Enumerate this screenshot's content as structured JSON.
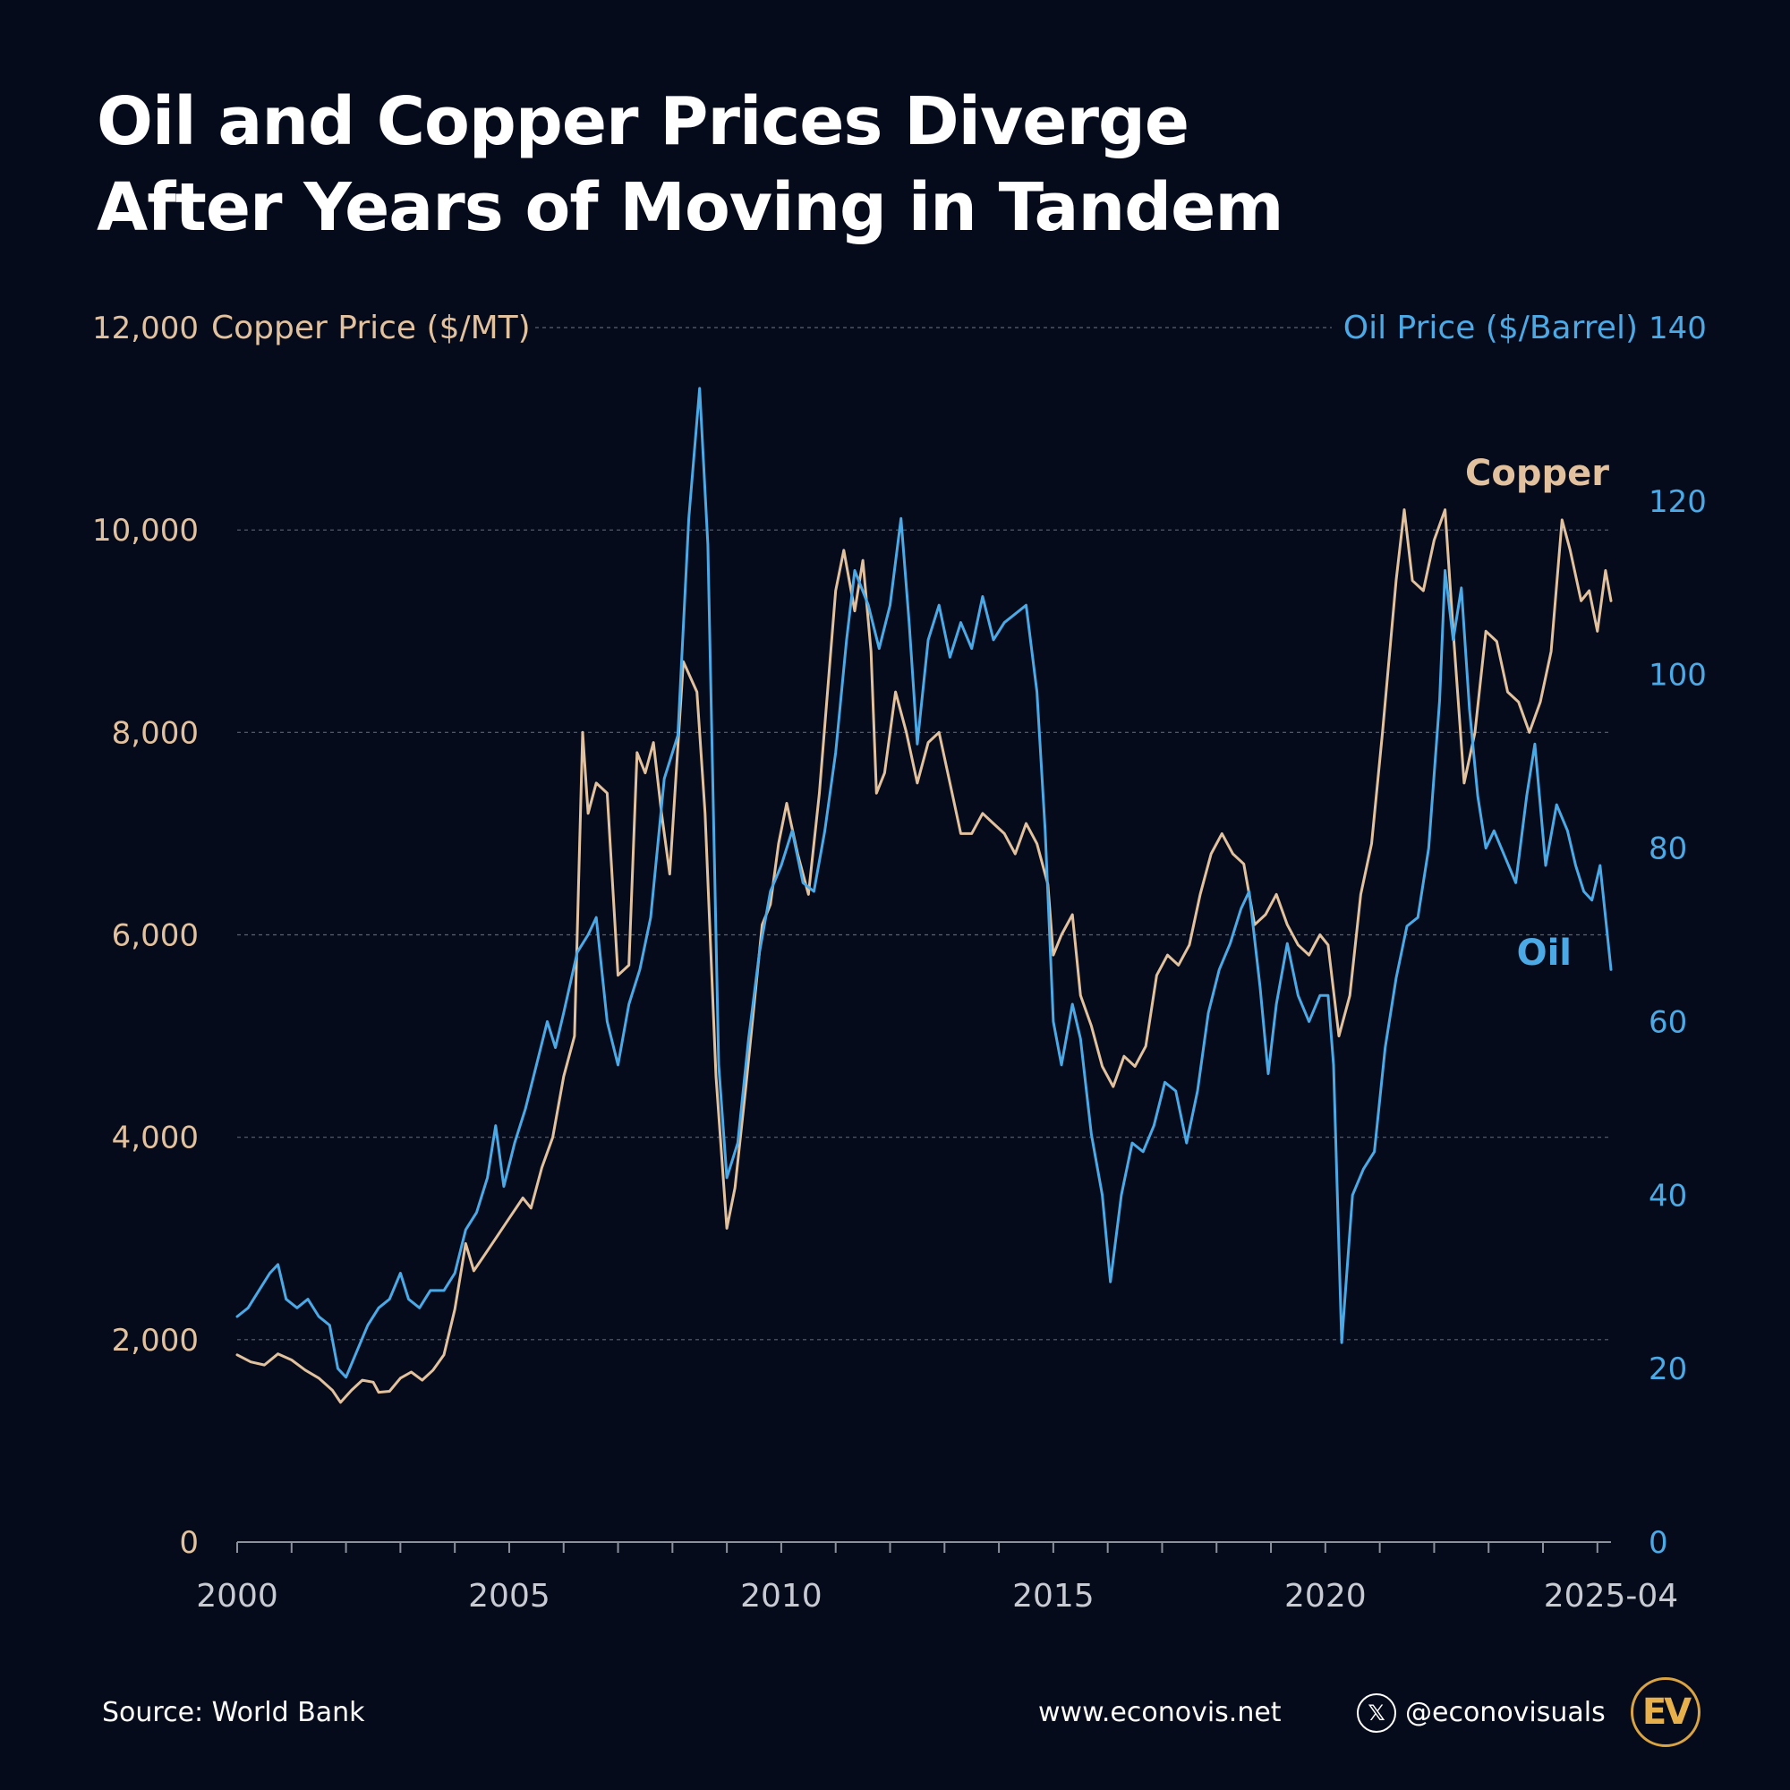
{
  "title": {
    "line1": "Oil and Copper Prices Diverge",
    "line2": "After Years of Moving in Tandem"
  },
  "colors": {
    "background": "#060b1c",
    "copper": "#e2c29e",
    "oil": "#4ba9e6",
    "grid": "#5c6170",
    "axis": "#8d919c",
    "xtick_label": "#c8cbd2",
    "logo": "#d9a441"
  },
  "chart_data": {
    "type": "line",
    "title": "Oil and Copper Prices Diverge After Years of Moving in Tandem",
    "x_range": [
      2000,
      2025.25
    ],
    "x_ticks": [
      {
        "value": 2000,
        "label": "2000"
      },
      {
        "value": 2005,
        "label": "2005"
      },
      {
        "value": 2010,
        "label": "2010"
      },
      {
        "value": 2015,
        "label": "2015"
      },
      {
        "value": 2020,
        "label": "2020"
      },
      {
        "value": 2025.25,
        "label": "2025-04"
      }
    ],
    "left_axis": {
      "label": "Copper Price ($/MT)",
      "range": [
        0,
        12000
      ],
      "ticks": [
        0,
        2000,
        4000,
        6000,
        8000,
        10000,
        12000
      ],
      "tick_labels": [
        "0",
        "2,000",
        "4,000",
        "6,000",
        "8,000",
        "10,000",
        "12,000"
      ]
    },
    "right_axis": {
      "label": "Oil Price ($/Barrel)",
      "range": [
        0,
        140
      ],
      "ticks": [
        0,
        20,
        40,
        60,
        80,
        100,
        120,
        140
      ],
      "tick_labels": [
        "0",
        "20",
        "40",
        "60",
        "80",
        "100",
        "120",
        "140"
      ]
    },
    "grid": true,
    "series": [
      {
        "name": "Copper",
        "axis": "left",
        "points": [
          [
            2000.0,
            1850
          ],
          [
            2000.25,
            1780
          ],
          [
            2000.5,
            1750
          ],
          [
            2000.75,
            1860
          ],
          [
            2001.0,
            1800
          ],
          [
            2001.25,
            1700
          ],
          [
            2001.5,
            1620
          ],
          [
            2001.75,
            1500
          ],
          [
            2001.9,
            1380
          ],
          [
            2002.1,
            1500
          ],
          [
            2002.3,
            1600
          ],
          [
            2002.5,
            1580
          ],
          [
            2002.6,
            1480
          ],
          [
            2002.8,
            1490
          ],
          [
            2003.0,
            1620
          ],
          [
            2003.2,
            1680
          ],
          [
            2003.4,
            1600
          ],
          [
            2003.6,
            1700
          ],
          [
            2003.8,
            1850
          ],
          [
            2004.0,
            2300
          ],
          [
            2004.2,
            2950
          ],
          [
            2004.35,
            2680
          ],
          [
            2004.5,
            2800
          ],
          [
            2004.75,
            3000
          ],
          [
            2005.0,
            3200
          ],
          [
            2005.25,
            3400
          ],
          [
            2005.4,
            3300
          ],
          [
            2005.6,
            3700
          ],
          [
            2005.8,
            4000
          ],
          [
            2006.0,
            4600
          ],
          [
            2006.2,
            5000
          ],
          [
            2006.35,
            8000
          ],
          [
            2006.45,
            7200
          ],
          [
            2006.6,
            7500
          ],
          [
            2006.8,
            7400
          ],
          [
            2007.0,
            5600
          ],
          [
            2007.2,
            5700
          ],
          [
            2007.35,
            7800
          ],
          [
            2007.5,
            7600
          ],
          [
            2007.65,
            7900
          ],
          [
            2007.8,
            7200
          ],
          [
            2007.95,
            6600
          ],
          [
            2008.2,
            8700
          ],
          [
            2008.45,
            8400
          ],
          [
            2008.6,
            7200
          ],
          [
            2008.8,
            4600
          ],
          [
            2009.0,
            3100
          ],
          [
            2009.15,
            3500
          ],
          [
            2009.35,
            4500
          ],
          [
            2009.5,
            5300
          ],
          [
            2009.65,
            6100
          ],
          [
            2009.8,
            6300
          ],
          [
            2009.95,
            6900
          ],
          [
            2010.1,
            7300
          ],
          [
            2010.3,
            6800
          ],
          [
            2010.5,
            6400
          ],
          [
            2010.7,
            7400
          ],
          [
            2010.85,
            8400
          ],
          [
            2011.0,
            9400
          ],
          [
            2011.15,
            9800
          ],
          [
            2011.35,
            9200
          ],
          [
            2011.5,
            9700
          ],
          [
            2011.65,
            8800
          ],
          [
            2011.75,
            7400
          ],
          [
            2011.9,
            7600
          ],
          [
            2012.1,
            8400
          ],
          [
            2012.3,
            8000
          ],
          [
            2012.5,
            7500
          ],
          [
            2012.7,
            7900
          ],
          [
            2012.9,
            8000
          ],
          [
            2013.1,
            7500
          ],
          [
            2013.3,
            7000
          ],
          [
            2013.5,
            7000
          ],
          [
            2013.7,
            7200
          ],
          [
            2013.9,
            7100
          ],
          [
            2014.1,
            7000
          ],
          [
            2014.3,
            6800
          ],
          [
            2014.5,
            7100
          ],
          [
            2014.7,
            6900
          ],
          [
            2014.9,
            6500
          ],
          [
            2015.0,
            5800
          ],
          [
            2015.15,
            6000
          ],
          [
            2015.35,
            6200
          ],
          [
            2015.5,
            5400
          ],
          [
            2015.7,
            5100
          ],
          [
            2015.9,
            4700
          ],
          [
            2016.1,
            4500
          ],
          [
            2016.3,
            4800
          ],
          [
            2016.5,
            4700
          ],
          [
            2016.7,
            4900
          ],
          [
            2016.9,
            5600
          ],
          [
            2017.1,
            5800
          ],
          [
            2017.3,
            5700
          ],
          [
            2017.5,
            5900
          ],
          [
            2017.7,
            6400
          ],
          [
            2017.9,
            6800
          ],
          [
            2018.1,
            7000
          ],
          [
            2018.3,
            6800
          ],
          [
            2018.5,
            6700
          ],
          [
            2018.7,
            6100
          ],
          [
            2018.9,
            6200
          ],
          [
            2019.1,
            6400
          ],
          [
            2019.3,
            6100
          ],
          [
            2019.5,
            5900
          ],
          [
            2019.7,
            5800
          ],
          [
            2019.9,
            6000
          ],
          [
            2020.05,
            5900
          ],
          [
            2020.25,
            5000
          ],
          [
            2020.45,
            5400
          ],
          [
            2020.65,
            6400
          ],
          [
            2020.85,
            6900
          ],
          [
            2021.05,
            8000
          ],
          [
            2021.3,
            9500
          ],
          [
            2021.45,
            10200
          ],
          [
            2021.6,
            9500
          ],
          [
            2021.8,
            9400
          ],
          [
            2022.0,
            9900
          ],
          [
            2022.2,
            10200
          ],
          [
            2022.35,
            9000
          ],
          [
            2022.55,
            7500
          ],
          [
            2022.75,
            8000
          ],
          [
            2022.95,
            9000
          ],
          [
            2023.15,
            8900
          ],
          [
            2023.35,
            8400
          ],
          [
            2023.55,
            8300
          ],
          [
            2023.75,
            8000
          ],
          [
            2023.95,
            8300
          ],
          [
            2024.15,
            8800
          ],
          [
            2024.35,
            10100
          ],
          [
            2024.5,
            9800
          ],
          [
            2024.7,
            9300
          ],
          [
            2024.85,
            9400
          ],
          [
            2025.0,
            9000
          ],
          [
            2025.15,
            9600
          ],
          [
            2025.25,
            9300
          ]
        ]
      },
      {
        "name": "Oil",
        "axis": "right",
        "points": [
          [
            2000.0,
            26
          ],
          [
            2000.2,
            27
          ],
          [
            2000.4,
            29
          ],
          [
            2000.6,
            31
          ],
          [
            2000.75,
            32
          ],
          [
            2000.9,
            28
          ],
          [
            2001.1,
            27
          ],
          [
            2001.3,
            28
          ],
          [
            2001.5,
            26
          ],
          [
            2001.7,
            25
          ],
          [
            2001.85,
            20
          ],
          [
            2002.0,
            19
          ],
          [
            2002.2,
            22
          ],
          [
            2002.4,
            25
          ],
          [
            2002.6,
            27
          ],
          [
            2002.8,
            28
          ],
          [
            2003.0,
            31
          ],
          [
            2003.15,
            28
          ],
          [
            2003.35,
            27
          ],
          [
            2003.55,
            29
          ],
          [
            2003.8,
            29
          ],
          [
            2004.0,
            31
          ],
          [
            2004.2,
            36
          ],
          [
            2004.4,
            38
          ],
          [
            2004.6,
            42
          ],
          [
            2004.75,
            48
          ],
          [
            2004.9,
            41
          ],
          [
            2005.1,
            46
          ],
          [
            2005.3,
            50
          ],
          [
            2005.5,
            55
          ],
          [
            2005.7,
            60
          ],
          [
            2005.85,
            57
          ],
          [
            2006.0,
            61
          ],
          [
            2006.25,
            68
          ],
          [
            2006.45,
            70
          ],
          [
            2006.6,
            72
          ],
          [
            2006.8,
            60
          ],
          [
            2007.0,
            55
          ],
          [
            2007.2,
            62
          ],
          [
            2007.4,
            66
          ],
          [
            2007.6,
            72
          ],
          [
            2007.85,
            88
          ],
          [
            2008.1,
            93
          ],
          [
            2008.3,
            118
          ],
          [
            2008.5,
            133
          ],
          [
            2008.65,
            115
          ],
          [
            2008.85,
            55
          ],
          [
            2009.0,
            42
          ],
          [
            2009.2,
            46
          ],
          [
            2009.4,
            58
          ],
          [
            2009.6,
            68
          ],
          [
            2009.8,
            75
          ],
          [
            2010.0,
            78
          ],
          [
            2010.2,
            82
          ],
          [
            2010.4,
            76
          ],
          [
            2010.6,
            75
          ],
          [
            2010.8,
            82
          ],
          [
            2011.0,
            91
          ],
          [
            2011.2,
            104
          ],
          [
            2011.35,
            112
          ],
          [
            2011.6,
            108
          ],
          [
            2011.8,
            103
          ],
          [
            2012.0,
            108
          ],
          [
            2012.2,
            118
          ],
          [
            2012.35,
            106
          ],
          [
            2012.5,
            92
          ],
          [
            2012.7,
            104
          ],
          [
            2012.9,
            108
          ],
          [
            2013.1,
            102
          ],
          [
            2013.3,
            106
          ],
          [
            2013.5,
            103
          ],
          [
            2013.7,
            109
          ],
          [
            2013.9,
            104
          ],
          [
            2014.1,
            106
          ],
          [
            2014.3,
            107
          ],
          [
            2014.5,
            108
          ],
          [
            2014.7,
            98
          ],
          [
            2014.85,
            82
          ],
          [
            2015.0,
            60
          ],
          [
            2015.15,
            55
          ],
          [
            2015.35,
            62
          ],
          [
            2015.5,
            58
          ],
          [
            2015.7,
            47
          ],
          [
            2015.9,
            40
          ],
          [
            2016.05,
            30
          ],
          [
            2016.25,
            40
          ],
          [
            2016.45,
            46
          ],
          [
            2016.65,
            45
          ],
          [
            2016.85,
            48
          ],
          [
            2017.05,
            53
          ],
          [
            2017.25,
            52
          ],
          [
            2017.45,
            46
          ],
          [
            2017.65,
            52
          ],
          [
            2017.85,
            61
          ],
          [
            2018.05,
            66
          ],
          [
            2018.25,
            69
          ],
          [
            2018.45,
            73
          ],
          [
            2018.6,
            75
          ],
          [
            2018.8,
            64
          ],
          [
            2018.95,
            54
          ],
          [
            2019.1,
            62
          ],
          [
            2019.3,
            69
          ],
          [
            2019.5,
            63
          ],
          [
            2019.7,
            60
          ],
          [
            2019.9,
            63
          ],
          [
            2020.05,
            63
          ],
          [
            2020.15,
            55
          ],
          [
            2020.3,
            23
          ],
          [
            2020.5,
            40
          ],
          [
            2020.7,
            43
          ],
          [
            2020.9,
            45
          ],
          [
            2021.1,
            57
          ],
          [
            2021.3,
            65
          ],
          [
            2021.5,
            71
          ],
          [
            2021.7,
            72
          ],
          [
            2021.9,
            80
          ],
          [
            2022.1,
            97
          ],
          [
            2022.2,
            112
          ],
          [
            2022.35,
            104
          ],
          [
            2022.5,
            110
          ],
          [
            2022.65,
            96
          ],
          [
            2022.8,
            86
          ],
          [
            2022.95,
            80
          ],
          [
            2023.1,
            82
          ],
          [
            2023.3,
            79
          ],
          [
            2023.5,
            76
          ],
          [
            2023.7,
            86
          ],
          [
            2023.85,
            92
          ],
          [
            2024.05,
            78
          ],
          [
            2024.25,
            85
          ],
          [
            2024.45,
            82
          ],
          [
            2024.6,
            78
          ],
          [
            2024.75,
            75
          ],
          [
            2024.9,
            74
          ],
          [
            2025.05,
            78
          ],
          [
            2025.15,
            72
          ],
          [
            2025.25,
            66
          ]
        ]
      }
    ],
    "annotations": [
      "Copper",
      "Oil"
    ]
  },
  "footer": {
    "source": "Source: World Bank",
    "website": "www.econovis.net",
    "x_icon_glyph": "𝕏",
    "handle": "@econovisuals",
    "logo_text": "EV"
  }
}
